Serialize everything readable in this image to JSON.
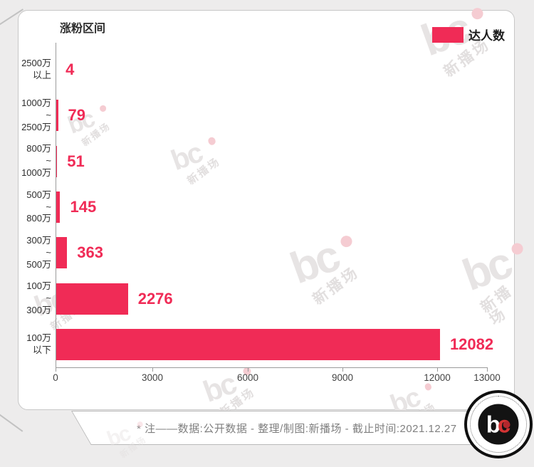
{
  "chart_data": {
    "type": "bar",
    "orientation": "horizontal",
    "axis_group_title": "涨粉区间",
    "series_name": "达人数",
    "categories": [
      "2500万以上",
      "1000万~2500万",
      "800万~1000万",
      "500万~800万",
      "300万~500万",
      "100万~300万",
      "100万以下"
    ],
    "values": [
      4,
      79,
      51,
      145,
      363,
      2276,
      12082
    ],
    "x_ticks": [
      0,
      3000,
      6000,
      9000,
      12000,
      13000
    ],
    "xlim": [
      0,
      13560
    ],
    "grid": false,
    "legend_position": "top-right",
    "bar_color": "#F02B56",
    "value_labels_shown": true
  },
  "header": {
    "axis_title": "涨粉区间",
    "legend_label": "达人数"
  },
  "rows": [
    {
      "lines": [
        "2500万",
        "以上"
      ],
      "value": "4"
    },
    {
      "lines": [
        "1000万",
        "~",
        "2500万"
      ],
      "value": "79"
    },
    {
      "lines": [
        "800万",
        "~",
        "1000万"
      ],
      "value": "51"
    },
    {
      "lines": [
        "500万",
        "~",
        "800万"
      ],
      "value": "145"
    },
    {
      "lines": [
        "300万",
        "~",
        "500万"
      ],
      "value": "363"
    },
    {
      "lines": [
        "100万",
        "~",
        "300万"
      ],
      "value": "2276"
    },
    {
      "lines": [
        "100万",
        "以下"
      ],
      "value": "12082"
    }
  ],
  "x_axis": {
    "ticks": [
      "0",
      "3000",
      "6000",
      "9000",
      "12000",
      "13000"
    ]
  },
  "footer": {
    "note": "* 注——数据:公开数据 - 整理/制图:新播场 - 截止时间:2021.12.27"
  },
  "watermark": {
    "glyph": "bc",
    "text": "新播场"
  },
  "logo": {
    "letter_b": "b",
    "letter_c": "c"
  },
  "colors": {
    "accent": "#F02B56",
    "background": "#EDECEC",
    "card_border": "#C7C7C7"
  }
}
